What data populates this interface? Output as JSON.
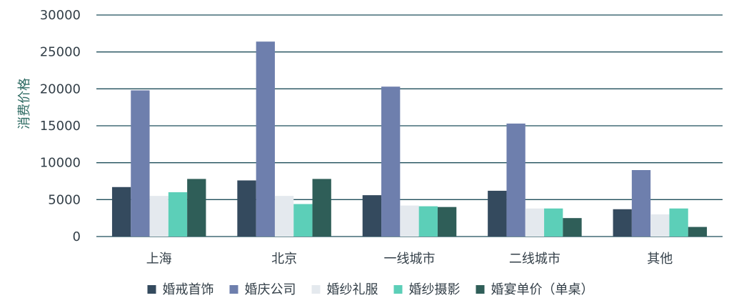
{
  "chart_data": {
    "type": "bar",
    "categories": [
      "上海",
      "北京",
      "一线城市",
      "二线城市",
      "其他"
    ],
    "series": [
      {
        "name": "婚戒首饰",
        "color": "#344a5e",
        "values": [
          6700,
          7600,
          5600,
          6200,
          3700
        ]
      },
      {
        "name": "婚庆公司",
        "color": "#6e7fad",
        "values": [
          19800,
          26400,
          20300,
          15300,
          9000
        ]
      },
      {
        "name": "婚纱礼服",
        "color": "#e4e9ee",
        "values": [
          5500,
          5500,
          4200,
          3800,
          3000
        ]
      },
      {
        "name": "婚纱摄影",
        "color": "#5ccfb8",
        "values": [
          6000,
          4400,
          4100,
          3800,
          3800
        ]
      },
      {
        "name": "婚宴单价（单桌）",
        "color": "#2f5e58",
        "values": [
          7800,
          7800,
          4000,
          2500,
          1300
        ]
      }
    ],
    "yticks": [
      0,
      5000,
      10000,
      15000,
      20000,
      25000,
      30000
    ],
    "ylim": [
      0,
      30000
    ],
    "xlabel": "",
    "ylabel": "消费价格",
    "grid": true,
    "legend": "bottom"
  }
}
